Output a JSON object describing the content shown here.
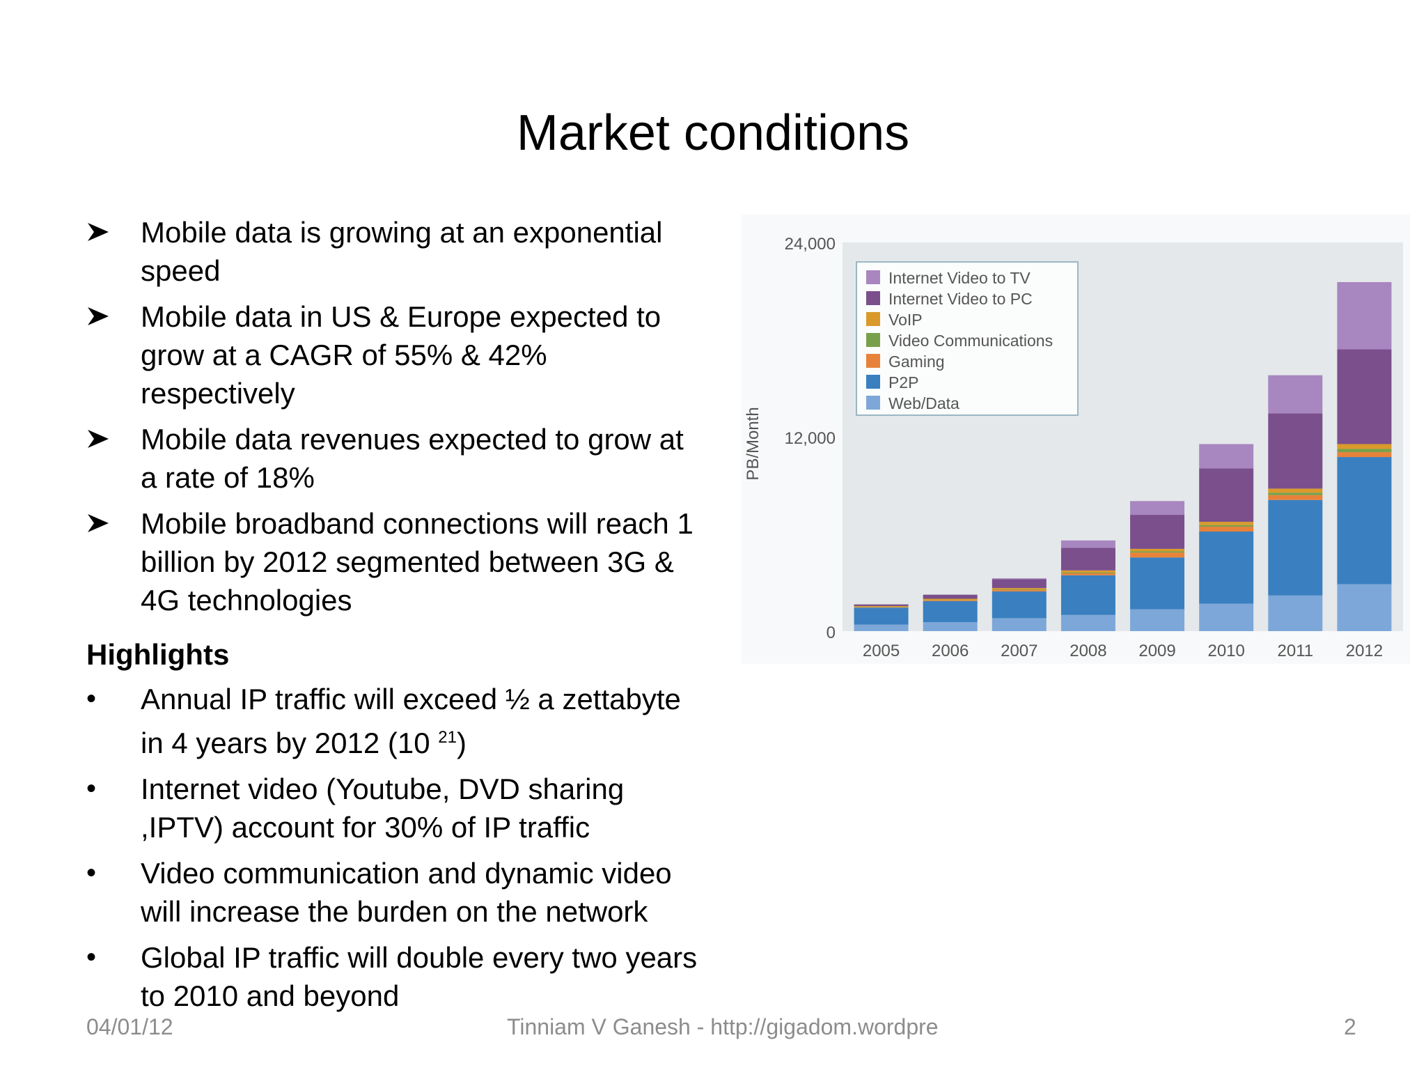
{
  "title": "Market conditions",
  "bullets": [
    "Mobile data is growing at an exponential speed",
    "Mobile data in US & Europe expected to grow at a CAGR of 55% & 42% respectively",
    "Mobile data revenues expected to grow at a rate of 18%",
    "Mobile broadband connections will reach 1 billion by 2012 segmented between 3G & 4G technologies"
  ],
  "highlights": {
    "heading": "Highlights",
    "items": [
      {
        "text": "Annual IP traffic will exceed ½ a zettabyte in 4 years by 2012 (10 ",
        "sup": "21",
        "tail": ")"
      },
      {
        "text": "Internet video (Youtube, DVD sharing ,IPTV) account for 30% of IP traffic"
      },
      {
        "text": "Video communication and dynamic video will increase the burden on the network"
      },
      {
        "text": "Global IP traffic will double every two years to 2010 and beyond"
      }
    ]
  },
  "footer": {
    "date": "04/01/12",
    "author": "Tinniam V Ganesh - http://gigadom.wordpre",
    "page": "2"
  },
  "chart_data": {
    "type": "bar",
    "stacked": true,
    "ylabel": "PB/Month",
    "ylim": [
      0,
      24000
    ],
    "yticks": [
      "0",
      "12,000",
      "24,000"
    ],
    "ytick_values": [
      0,
      12000,
      24000
    ],
    "categories": [
      "2005",
      "2006",
      "2007",
      "2008",
      "2009",
      "2010",
      "2011",
      "2012"
    ],
    "legend_position": "top-left",
    "series": [
      {
        "name": "Web/Data",
        "color": "#7da7d9",
        "values": [
          400,
          550,
          800,
          1000,
          1350,
          1700,
          2200,
          2900
        ]
      },
      {
        "name": "P2P",
        "color": "#3a7fbf",
        "values": [
          1050,
          1300,
          1650,
          2450,
          3200,
          4450,
          5900,
          7850
        ]
      },
      {
        "name": "Gaming",
        "color": "#e8823a",
        "values": [
          30,
          50,
          80,
          120,
          300,
          300,
          300,
          300
        ]
      },
      {
        "name": "Video Communications",
        "color": "#78a04a",
        "values": [
          20,
          20,
          30,
          50,
          80,
          100,
          150,
          200
        ]
      },
      {
        "name": "VoIP",
        "color": "#d99a2b",
        "values": [
          50,
          80,
          100,
          130,
          150,
          200,
          250,
          300
        ]
      },
      {
        "name": "Internet Video to PC",
        "color": "#7a4f8c",
        "values": [
          100,
          250,
          550,
          1400,
          2100,
          3300,
          4650,
          5850
        ]
      },
      {
        "name": "Internet Video to TV",
        "color": "#a886c0",
        "values": [
          0,
          0,
          50,
          450,
          850,
          1500,
          2350,
          4150
        ]
      }
    ]
  }
}
